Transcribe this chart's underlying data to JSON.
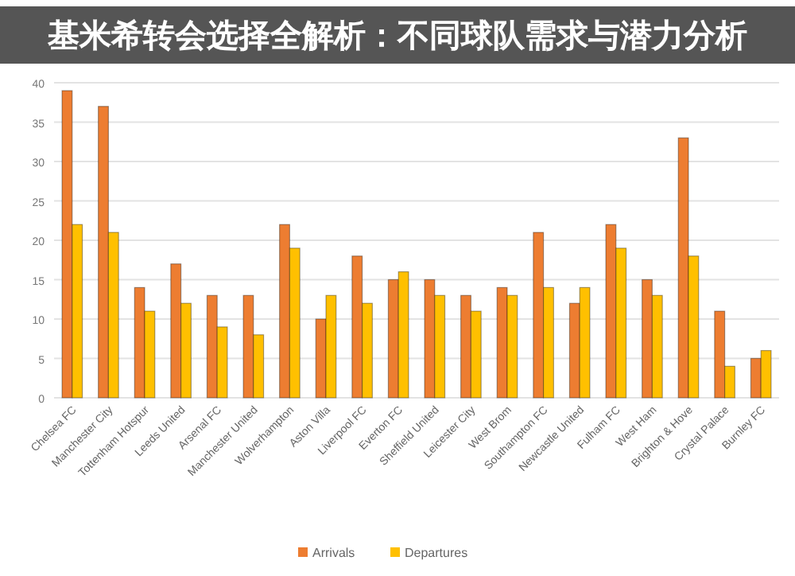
{
  "chart_data": {
    "type": "bar",
    "title": "基米希转会选择全解析：不同球队需求与潜力分析",
    "categories": [
      "Chelsea FC",
      "Manchester City",
      "Tottenham Hotspur",
      "Leeds United",
      "Arsenal FC",
      "Manchester United",
      "Wolverhampton",
      "Aston Villa",
      "Liverpool FC",
      "Everton FC",
      "Sheffield United",
      "Leicester City",
      "West Brom",
      "Southampton FC",
      "Newcastle United",
      "Fulham FC",
      "West Ham",
      "Brighton & Hove",
      "Crystal Palace",
      "Burnley FC"
    ],
    "series": [
      {
        "name": "Arrivals",
        "color": "#ed7d31",
        "values": [
          39,
          37,
          14,
          17,
          13,
          13,
          22,
          10,
          18,
          15,
          15,
          13,
          14,
          21,
          12,
          22,
          15,
          33,
          11,
          5
        ]
      },
      {
        "name": "Departures",
        "color": "#ffc000",
        "values": [
          22,
          21,
          11,
          12,
          9,
          8,
          19,
          13,
          12,
          16,
          13,
          11,
          13,
          14,
          14,
          19,
          13,
          18,
          4,
          6
        ]
      }
    ],
    "ylim": [
      0,
      40
    ],
    "yticks": [
      0,
      5,
      10,
      15,
      20,
      25,
      30,
      35,
      40
    ],
    "grid": "y",
    "legend": "bottom"
  }
}
